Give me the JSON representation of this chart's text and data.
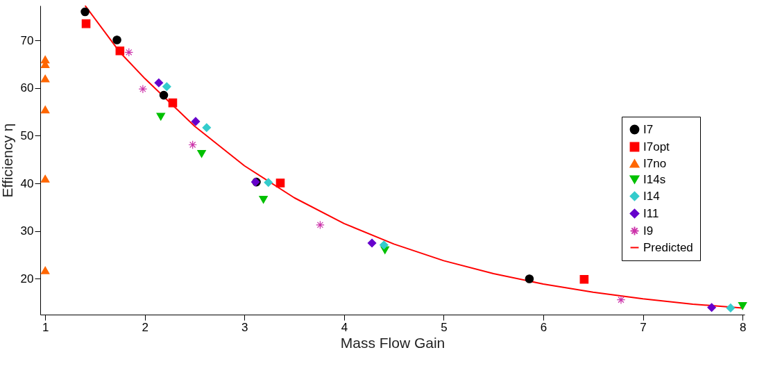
{
  "chart_data": {
    "type": "scatter",
    "xlabel": "Mass Flow Gain",
    "ylabel": "Efficiency η",
    "xlim": [
      0.95,
      8.02
    ],
    "ylim": [
      12.5,
      77.3
    ],
    "xticks": [
      1,
      2,
      3,
      4,
      5,
      6,
      7,
      8
    ],
    "yticks": [
      20,
      30,
      40,
      50,
      60,
      70
    ],
    "grid": false,
    "legend": "right",
    "series": [
      {
        "name": "I7",
        "color": "#000000",
        "marker": "circle",
        "x": [
          1.4,
          1.72,
          2.19,
          3.12,
          5.86
        ],
        "values": [
          76.0,
          70.1,
          58.5,
          40.3,
          20.0
        ]
      },
      {
        "name": "I7opt",
        "color": "#ff0000",
        "marker": "square",
        "x": [
          1.41,
          1.75,
          2.28,
          3.36,
          6.41
        ],
        "values": [
          73.5,
          67.8,
          56.9,
          40.1,
          19.9
        ]
      },
      {
        "name": "I7no",
        "color": "#ff6600",
        "marker": "triangle",
        "x": [
          1,
          1,
          1,
          1,
          1,
          1
        ],
        "values": [
          66.0,
          65.0,
          62.0,
          55.5,
          41.0,
          21.8
        ]
      },
      {
        "name": "I14s",
        "color": "#00c000",
        "marker": "triangle-down",
        "x": [
          2.16,
          2.57,
          3.19,
          4.41,
          8.0
        ],
        "values": [
          54.0,
          46.2,
          36.6,
          26.0,
          14.3
        ]
      },
      {
        "name": "I14",
        "color": "#33cccc",
        "marker": "diamond",
        "x": [
          2.22,
          2.62,
          3.24,
          4.4,
          7.88
        ],
        "values": [
          60.3,
          51.7,
          40.2,
          27.1,
          13.9
        ]
      },
      {
        "name": "I11",
        "color": "#6600cc",
        "marker": "diamond",
        "x": [
          2.14,
          2.51,
          3.11,
          4.28,
          7.69
        ],
        "values": [
          61.1,
          53.0,
          40.3,
          27.5,
          14.0
        ]
      },
      {
        "name": "I9",
        "color": "#cc33aa",
        "marker": "cross",
        "x": [
          1.84,
          1.98,
          2.48,
          3.76,
          6.78
        ],
        "values": [
          67.5,
          59.8,
          48.1,
          31.3,
          15.6
        ]
      },
      {
        "name": "Predicted",
        "color": "#ff0000",
        "type": "line",
        "x": [
          1.4,
          1.75,
          2,
          2.5,
          3,
          3.5,
          4,
          4.5,
          5,
          5.5,
          6,
          6.5,
          7,
          7.5,
          8
        ],
        "values": [
          77.3,
          67.5,
          62,
          52,
          43.7,
          37,
          31.6,
          27.3,
          23.8,
          21.1,
          18.9,
          17.2,
          15.8,
          14.7,
          13.9
        ]
      }
    ]
  }
}
